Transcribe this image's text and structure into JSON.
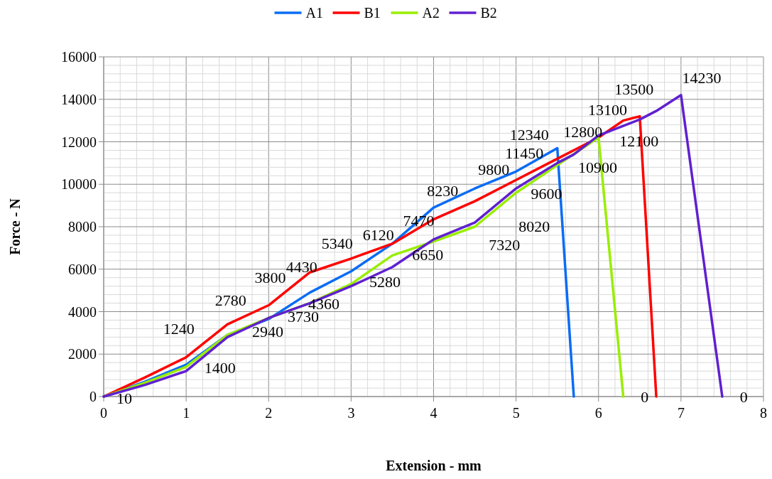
{
  "chart_data": {
    "type": "line",
    "xlabel": "Extension - mm",
    "ylabel": "Force - N",
    "xlim": [
      0,
      8
    ],
    "xticks": [
      0,
      1,
      2,
      3,
      4,
      5,
      6,
      7,
      8
    ],
    "ylim": [
      0,
      16000
    ],
    "yticks": [
      0,
      2000,
      4000,
      6000,
      8000,
      10000,
      12000,
      14000,
      16000
    ],
    "grid": true,
    "legend": "top",
    "marker": "none",
    "line_style": "solid",
    "series": [
      {
        "name": "A1",
        "color": "#0a6cf5",
        "x": [
          0,
          0.5,
          1,
          1.5,
          2,
          2.5,
          3,
          3.5,
          4,
          4.5,
          5,
          5.5,
          5.7
        ],
        "values": [
          0,
          700,
          1500,
          2900,
          3650,
          4900,
          5900,
          7200,
          8900,
          9800,
          10600,
          11700,
          0
        ]
      },
      {
        "name": "B1",
        "color": "#ff0000",
        "x": [
          0,
          0.5,
          1,
          1.5,
          2,
          2.5,
          3,
          3.5,
          4,
          4.5,
          5,
          5.5,
          5.8,
          6,
          6.3,
          6.5,
          6.7
        ],
        "values": [
          0,
          900,
          1850,
          3400,
          4300,
          5850,
          6500,
          7200,
          8350,
          9200,
          10200,
          11200,
          11800,
          12200,
          13000,
          13200,
          0
        ]
      },
      {
        "name": "A2",
        "color": "#99ee00",
        "x": [
          0,
          0.5,
          1,
          1.5,
          2,
          2.5,
          3,
          3.5,
          4,
          4.5,
          5,
          5.5,
          6,
          6.3
        ],
        "values": [
          0,
          650,
          1400,
          2900,
          3700,
          4400,
          5300,
          6650,
          7300,
          8000,
          9600,
          10900,
          12200,
          0
        ]
      },
      {
        "name": "B2",
        "color": "#6020d0",
        "x": [
          0,
          0.5,
          1,
          1.5,
          2,
          2.5,
          3,
          3.5,
          4,
          4.5,
          5,
          5.5,
          5.7,
          6,
          6.5,
          6.7,
          7,
          7.5
        ],
        "values": [
          0,
          550,
          1200,
          2800,
          3700,
          4400,
          5200,
          6100,
          7400,
          8200,
          9800,
          11000,
          11400,
          12300,
          13050,
          13450,
          14200,
          0
        ]
      }
    ],
    "annotations": [
      "10",
      "1240",
      "1400",
      "2780",
      "2940",
      "3800",
      "3730",
      "4430",
      "4360",
      "5340",
      "5280",
      "6120",
      "6650",
      "7470",
      "7320",
      "8230",
      "8020",
      "9800",
      "9600",
      "11450",
      "12340",
      "10900",
      "12800",
      "12100",
      "13100",
      "13500",
      "14230",
      "0",
      "0"
    ]
  }
}
